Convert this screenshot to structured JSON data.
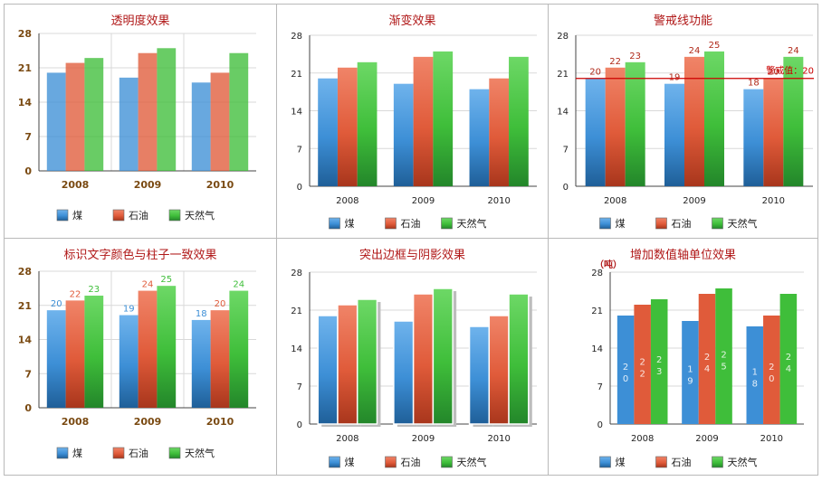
{
  "legend": [
    "煤",
    "石油",
    "天然气"
  ],
  "colors": {
    "coal": "#3d8fd6",
    "oil": "#e05b3a",
    "gas": "#3fbe3a",
    "title": "#b01818",
    "tick_bold": "#7a4a12",
    "alert_line": "#cc0000"
  },
  "chart_data": [
    {
      "type": "bar",
      "title": "透明度效果",
      "categories": [
        "2008",
        "2009",
        "2010"
      ],
      "series": [
        {
          "name": "煤",
          "values": [
            20,
            19,
            18
          ]
        },
        {
          "name": "石油",
          "values": [
            22,
            24,
            20
          ]
        },
        {
          "name": "天然气",
          "values": [
            23,
            25,
            24
          ]
        }
      ],
      "ylim": [
        0,
        28
      ],
      "yticks": [
        "0",
        "7",
        "14",
        "21",
        "28"
      ],
      "grid": true,
      "style": "transparent",
      "legend_position": "bottom"
    },
    {
      "type": "bar",
      "title": "渐变效果",
      "categories": [
        "2008",
        "2009",
        "2010"
      ],
      "series": [
        {
          "name": "煤",
          "values": [
            20,
            19,
            18
          ]
        },
        {
          "name": "石油",
          "values": [
            22,
            24,
            20
          ]
        },
        {
          "name": "天然气",
          "values": [
            23,
            25,
            24
          ]
        }
      ],
      "ylim": [
        0,
        28
      ],
      "yticks": [
        "0",
        "7",
        "14",
        "21",
        "28"
      ],
      "grid": true,
      "style": "gradient",
      "legend_position": "bottom"
    },
    {
      "type": "bar",
      "title": "警戒线功能",
      "categories": [
        "2008",
        "2009",
        "2010"
      ],
      "series": [
        {
          "name": "煤",
          "values": [
            20,
            19,
            18
          ]
        },
        {
          "name": "石油",
          "values": [
            22,
            24,
            20
          ]
        },
        {
          "name": "天然气",
          "values": [
            23,
            25,
            24
          ]
        }
      ],
      "ylim": [
        0,
        28
      ],
      "yticks": [
        "0",
        "7",
        "14",
        "21",
        "28"
      ],
      "grid": true,
      "style": "gradient",
      "data_labels": true,
      "alert_line": {
        "value": 20,
        "label": "警戒值：20"
      },
      "legend_position": "bottom"
    },
    {
      "type": "bar",
      "title": "标识文字颜色与柱子一致效果",
      "categories": [
        "2008",
        "2009",
        "2010"
      ],
      "series": [
        {
          "name": "煤",
          "values": [
            20,
            19,
            18
          ]
        },
        {
          "name": "石油",
          "values": [
            22,
            24,
            20
          ]
        },
        {
          "name": "天然气",
          "values": [
            23,
            25,
            24
          ]
        }
      ],
      "ylim": [
        0,
        28
      ],
      "yticks": [
        "0",
        "7",
        "14",
        "21",
        "28"
      ],
      "grid": true,
      "style": "gradient",
      "data_labels": true,
      "label_color_match": true,
      "legend_position": "bottom"
    },
    {
      "type": "bar",
      "title": "突出边框与阴影效果",
      "categories": [
        "2008",
        "2009",
        "2010"
      ],
      "series": [
        {
          "name": "煤",
          "values": [
            20,
            19,
            18
          ]
        },
        {
          "name": "石油",
          "values": [
            22,
            24,
            20
          ]
        },
        {
          "name": "天然气",
          "values": [
            23,
            25,
            24
          ]
        }
      ],
      "ylim": [
        0,
        28
      ],
      "yticks": [
        "0",
        "7",
        "14",
        "21",
        "28"
      ],
      "grid": true,
      "style": "border-shadow",
      "legend_position": "bottom"
    },
    {
      "type": "bar",
      "title": "增加数值轴单位效果",
      "unit_label": "（吨）",
      "categories": [
        "2008",
        "2009",
        "2010"
      ],
      "series": [
        {
          "name": "煤",
          "values": [
            20,
            19,
            18
          ]
        },
        {
          "name": "石油",
          "values": [
            22,
            24,
            20
          ]
        },
        {
          "name": "天然气",
          "values": [
            23,
            25,
            24
          ]
        }
      ],
      "ylim": [
        0,
        28
      ],
      "yticks": [
        "0",
        "7",
        "14",
        "21",
        "28"
      ],
      "grid": true,
      "style": "flat",
      "inside_vertical_labels": true,
      "legend_position": "bottom"
    }
  ]
}
